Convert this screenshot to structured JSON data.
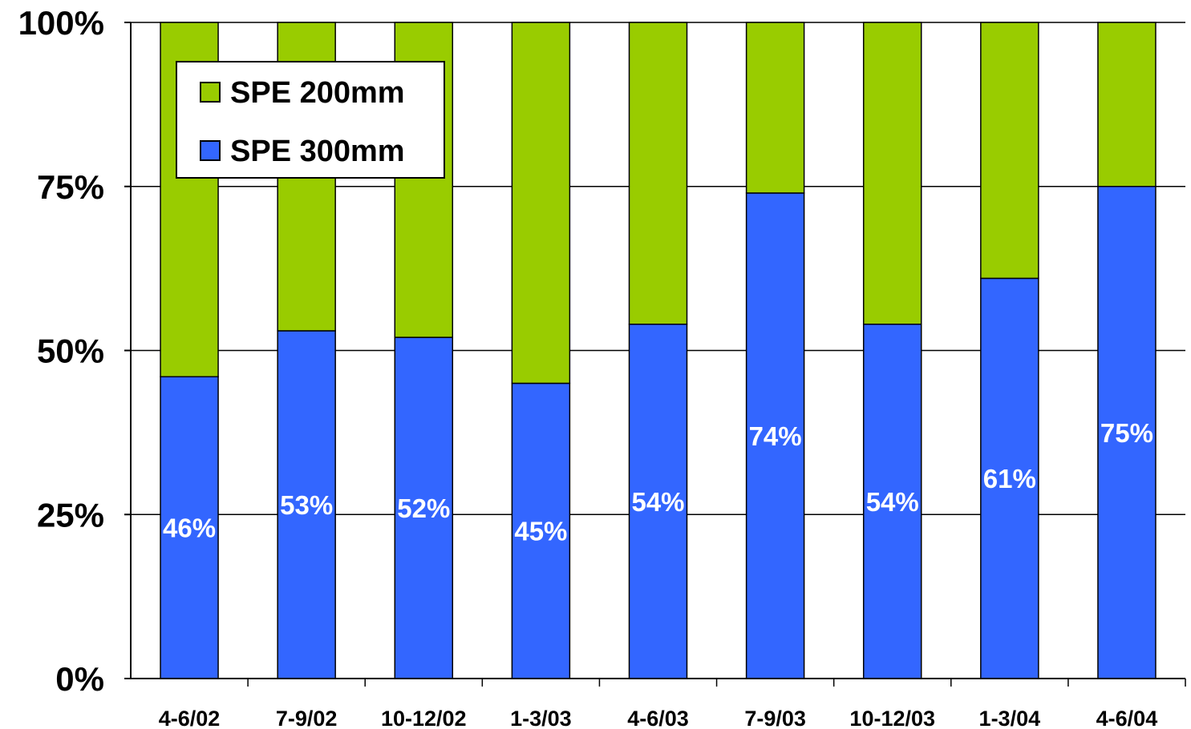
{
  "chart_data": {
    "type": "bar",
    "stacked": true,
    "percent_stacked": true,
    "categories": [
      "4-6/02",
      "7-9/02",
      "10-12/02",
      "1-3/03",
      "4-6/03",
      "7-9/03",
      "10-12/03",
      "1-3/04",
      "4-6/04"
    ],
    "series": [
      {
        "name": "SPE 300mm",
        "color": "#3366ff",
        "values": [
          46,
          53,
          52,
          45,
          54,
          74,
          54,
          61,
          75
        ],
        "labels": [
          "46%",
          "53%",
          "52%",
          "45%",
          "54%",
          "74%",
          "54%",
          "61%",
          "75%"
        ]
      },
      {
        "name": "SPE 200mm",
        "color": "#99cc00",
        "values": [
          54,
          47,
          48,
          55,
          46,
          26,
          46,
          39,
          25
        ]
      }
    ],
    "yticks": [
      0,
      25,
      50,
      75,
      100
    ],
    "ytick_labels": [
      "0%",
      "25%",
      "50%",
      "75%",
      "100%"
    ],
    "ylim": [
      0,
      100
    ],
    "grid": true,
    "legend": {
      "position": "top-left",
      "entries": [
        {
          "label": "SPE 200mm",
          "color": "#99cc00"
        },
        {
          "label": "SPE 300mm",
          "color": "#3366ff"
        }
      ]
    }
  }
}
